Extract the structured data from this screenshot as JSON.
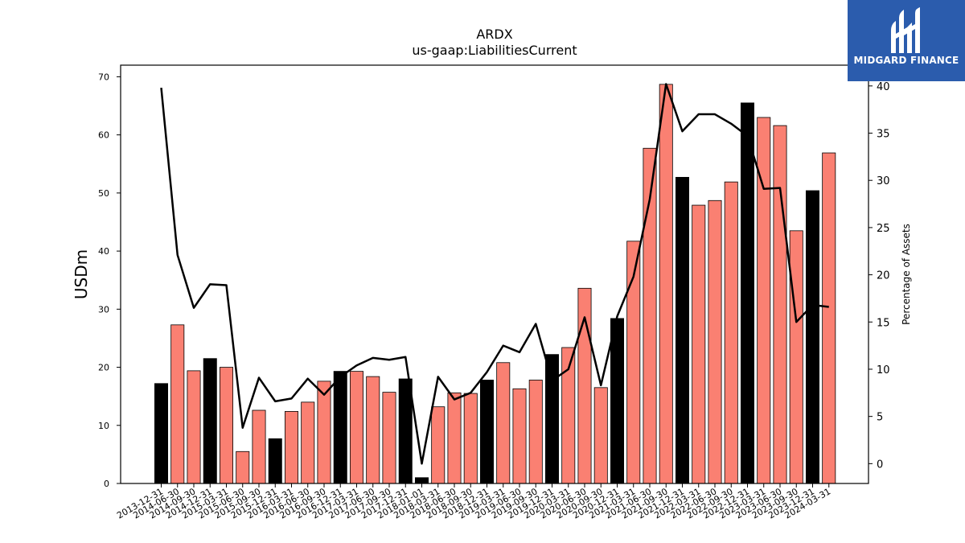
{
  "chart_data": {
    "type": "bar",
    "title": "ARDX",
    "subtitle": "us-gaap:LiabilitiesCurrent",
    "ylabel": "USDm",
    "y2label": "Percentage of Assets",
    "ylim": [
      0,
      72
    ],
    "y2lim": [
      -2.1,
      42.2
    ],
    "yticks": [
      0,
      10,
      20,
      30,
      40,
      50,
      60,
      70
    ],
    "y2ticks": [
      0,
      5,
      10,
      15,
      20,
      25,
      30,
      35,
      40
    ],
    "categories": [
      "2013-12-31",
      "2014-06-30",
      "2014-09-30",
      "2014-12-31",
      "2015-03-31",
      "2015-06-30",
      "2015-09-30",
      "2015-12-31",
      "2016-03-31",
      "2016-06-30",
      "2016-09-30",
      "2016-12-31",
      "2017-03-31",
      "2017-06-30",
      "2017-09-30",
      "2017-12-31",
      "2018-01-01",
      "2018-03-31",
      "2018-06-30",
      "2018-09-30",
      "2018-12-31",
      "2019-03-31",
      "2019-06-30",
      "2019-09-30",
      "2019-12-31",
      "2020-03-31",
      "2020-06-30",
      "2020-09-30",
      "2020-12-31",
      "2021-03-31",
      "2021-06-30",
      "2021-09-30",
      "2021-12-31",
      "2022-03-31",
      "2022-06-30",
      "2022-09-30",
      "2022-12-31",
      "2023-03-31",
      "2023-06-30",
      "2023-09-30",
      "2023-12-31",
      "2024-03-31"
    ],
    "series": [
      {
        "type": "bar",
        "values": [
          17.2,
          27.3,
          19.4,
          21.5,
          20.0,
          5.5,
          12.6,
          7.7,
          12.4,
          14.0,
          17.6,
          19.3,
          19.3,
          18.4,
          15.7,
          18.0,
          1.0,
          13.2,
          15.6,
          15.5,
          17.8,
          20.8,
          16.3,
          17.8,
          22.2,
          23.4,
          33.6,
          16.5,
          28.4,
          41.7,
          57.7,
          68.7,
          52.7,
          47.9,
          48.7,
          51.9,
          65.5,
          63.0,
          61.6,
          43.5,
          50.4,
          56.9
        ],
        "colors": [
          "#000000",
          "#fa8072",
          "#fa8072",
          "#000000",
          "#fa8072",
          "#fa8072",
          "#fa8072",
          "#000000",
          "#fa8072",
          "#fa8072",
          "#fa8072",
          "#000000",
          "#fa8072",
          "#fa8072",
          "#fa8072",
          "#000000",
          "#000000",
          "#fa8072",
          "#fa8072",
          "#fa8072",
          "#000000",
          "#fa8072",
          "#fa8072",
          "#fa8072",
          "#000000",
          "#fa8072",
          "#fa8072",
          "#fa8072",
          "#000000",
          "#fa8072",
          "#fa8072",
          "#fa8072",
          "#000000",
          "#fa8072",
          "#fa8072",
          "#fa8072",
          "#000000",
          "#fa8072",
          "#fa8072",
          "#fa8072",
          "#000000",
          "#fa8072"
        ]
      },
      {
        "type": "line",
        "axis": "right",
        "color": "#000000",
        "values": [
          39.8,
          22.1,
          16.5,
          19.0,
          18.9,
          3.8,
          9.1,
          6.6,
          6.9,
          9.0,
          7.3,
          9.2,
          10.4,
          11.2,
          11.0,
          11.3,
          0.0,
          9.2,
          6.8,
          7.5,
          9.7,
          12.5,
          11.8,
          14.8,
          8.8,
          10.0,
          15.5,
          8.3,
          15.6,
          19.8,
          28.0,
          40.2,
          35.2,
          37.0,
          37.0,
          36.0,
          34.7,
          29.1,
          29.2,
          15.0,
          16.8,
          16.6
        ]
      }
    ]
  },
  "logo": {
    "text": "MIDGARD FINANCE",
    "color": "#2b5cad"
  }
}
